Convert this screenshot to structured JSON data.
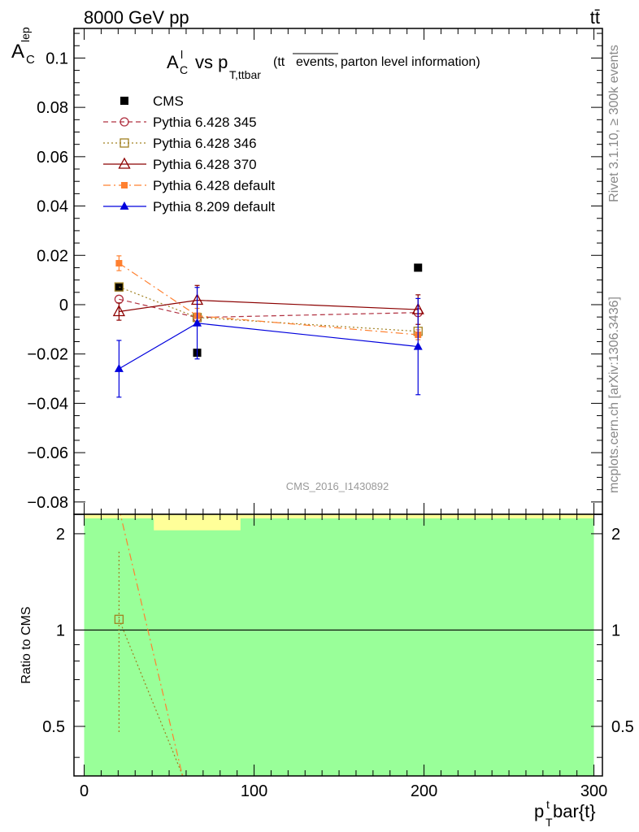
{
  "header": {
    "left_label": "8000 GeV pp",
    "right_label": "tt̄"
  },
  "side_labels": {
    "rivet": "Rivet 3.1.10, ≥ 300k events",
    "source": "mcplots.cern.ch [arXiv:1306.3436]"
  },
  "colors": {
    "cms": "#000000",
    "p345": "#b03040",
    "p346": "#a08020",
    "p370": "#8b0000",
    "p6def": "#ff8030",
    "p8def": "#0000dd",
    "ratio_green": "#99ff99",
    "ratio_yellow": "#ffff99"
  },
  "chart_data": [
    {
      "type": "scatter",
      "title_parts": {
        "a_main": "A",
        "a_sup": "l",
        "a_sub": "C",
        "vs": "vs p",
        "p_sub": "T,ttbar",
        "note_pre": "(tt",
        "note_over": "events,",
        "note_post": "parton level information)"
      },
      "ylabel": {
        "main": "A",
        "sup": "lep",
        "sub": "C"
      },
      "ylim": [
        -0.085,
        0.112
      ],
      "xlim": [
        -6,
        305
      ],
      "yticks": [
        -0.08,
        -0.06,
        -0.04,
        -0.02,
        0,
        0.02,
        0.04,
        0.06,
        0.08,
        0.1
      ],
      "ytick_labels": [
        "−0.08",
        "−0.06",
        "−0.04",
        "−0.02",
        "0",
        "0.02",
        "0.04",
        "0.06",
        "0.08",
        "0.1"
      ],
      "watermark": "CMS_2016_I1430892",
      "legend_position": "top-left",
      "series": [
        {
          "name": "CMS",
          "key": "cms",
          "marker": "square-filled",
          "line": "none",
          "x": [
            20.5,
            66.5,
            196.5
          ],
          "y": [
            0.007,
            -0.0195,
            0.015
          ],
          "err": [
            0,
            0,
            0
          ]
        },
        {
          "name": "Pythia 6.428 345",
          "key": "p345",
          "marker": "circle-open",
          "line": "dashed",
          "x": [
            20.5,
            66.5,
            196.5
          ],
          "y": [
            0.0022,
            -0.0052,
            -0.0032
          ],
          "err": [
            0,
            0,
            0
          ]
        },
        {
          "name": "Pythia 6.428 346",
          "key": "p346",
          "marker": "square-open",
          "line": "dotted",
          "x": [
            20.5,
            66.5,
            196.5
          ],
          "y": [
            0.0072,
            -0.0052,
            -0.0108
          ],
          "err": [
            0,
            0,
            0
          ]
        },
        {
          "name": "Pythia 6.428 370",
          "key": "p370",
          "marker": "triangle-open",
          "line": "solid",
          "x": [
            20.5,
            66.5,
            196.5
          ],
          "y": [
            -0.0028,
            0.0018,
            -0.002
          ],
          "err": [
            0.0035,
            0.006,
            0.006
          ]
        },
        {
          "name": "Pythia 6.428 default",
          "key": "p6def",
          "marker": "square-filled-small",
          "line": "dashdot",
          "x": [
            20.5,
            66.5,
            196.5
          ],
          "y": [
            0.0168,
            -0.0045,
            -0.0122
          ],
          "err": [
            0.003,
            0.003,
            0.002
          ]
        },
        {
          "name": "Pythia 8.209 default",
          "key": "p8def",
          "marker": "triangle-filled",
          "line": "solid",
          "x": [
            20.5,
            66.5,
            196.5
          ],
          "y": [
            -0.026,
            -0.0075,
            -0.017
          ],
          "err": [
            0.0115,
            0.0145,
            0.0195
          ]
        }
      ]
    },
    {
      "type": "line",
      "ylabel": "Ratio to CMS",
      "ylim": [
        0.35,
        2.3
      ],
      "ylog": true,
      "xlim": [
        -6,
        305
      ],
      "xlabel": {
        "main": "p",
        "sup": "t",
        "sub": "T",
        "rest": "bar{t}"
      },
      "xticks": [
        0,
        100,
        200,
        300
      ],
      "xtick_labels": [
        "0",
        "100",
        "200",
        "300"
      ],
      "yticks": [
        0.5,
        1,
        2
      ],
      "ytick_labels": [
        "0.5",
        "1",
        "2"
      ],
      "bands": [
        {
          "key": "ratio_green",
          "x": [
            0,
            300
          ],
          "y": [
            0.35,
            2.3
          ]
        },
        {
          "key": "ratio_yellow",
          "x": [
            41,
            92
          ],
          "y": [
            2.05,
            2.3
          ]
        }
      ],
      "reference": 1,
      "series": [
        {
          "name": "Pythia 6.428 346",
          "key": "p346",
          "line": "dotted",
          "x": [
            20.5,
            60
          ],
          "y": [
            1.08,
            0.33
          ],
          "point": [
            20.5,
            1.08
          ],
          "err": [
            0.48,
            1.78
          ]
        },
        {
          "name": "Pythia 6.428 default",
          "key": "p6def",
          "line": "dashdot",
          "x": [
            20.5,
            59
          ],
          "y": [
            2.4,
            0.33
          ]
        }
      ]
    }
  ]
}
